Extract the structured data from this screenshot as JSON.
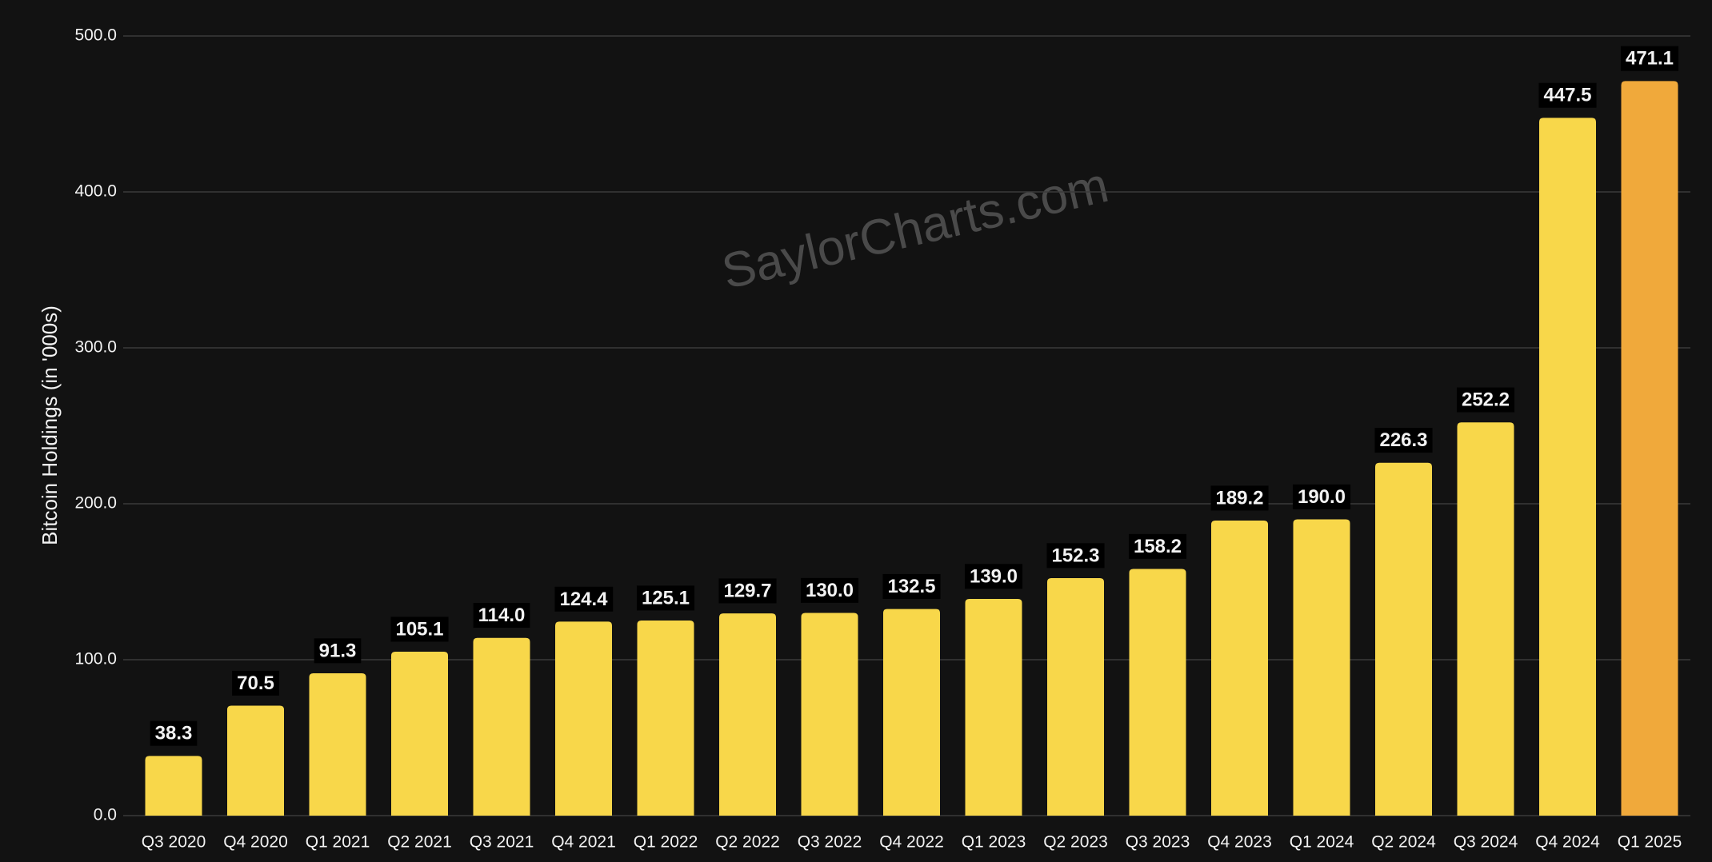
{
  "chart_data": {
    "type": "bar",
    "y_label": "Bitcoin Holdings (in '000s)",
    "watermark": "SaylorCharts.com",
    "categories": [
      "Q3 2020",
      "Q4 2020",
      "Q1 2021",
      "Q2 2021",
      "Q3 2021",
      "Q4 2021",
      "Q1 2022",
      "Q2 2022",
      "Q3 2022",
      "Q4 2022",
      "Q1 2023",
      "Q2 2023",
      "Q3 2023",
      "Q4 2023",
      "Q1 2024",
      "Q2 2024",
      "Q3 2024",
      "Q4 2024",
      "Q1 2025"
    ],
    "values": [
      38.3,
      70.5,
      91.3,
      105.1,
      114.0,
      124.4,
      125.1,
      129.7,
      130.0,
      132.5,
      139.0,
      152.3,
      158.2,
      189.2,
      190.0,
      226.3,
      252.2,
      447.5,
      471.1
    ],
    "value_labels": [
      "38.3",
      "70.5",
      "91.3",
      "105.1",
      "114.0",
      "124.4",
      "125.1",
      "129.7",
      "130.0",
      "132.5",
      "139.0",
      "152.3",
      "158.2",
      "189.2",
      "190.0",
      "226.3",
      "252.2",
      "447.5",
      "471.1"
    ],
    "colors": [
      "#f8d74a",
      "#f8d74a",
      "#f8d74a",
      "#f8d74a",
      "#f8d74a",
      "#f8d74a",
      "#f8d74a",
      "#f8d74a",
      "#f8d74a",
      "#f8d74a",
      "#f8d74a",
      "#f8d74a",
      "#f8d74a",
      "#f8d74a",
      "#f8d74a",
      "#f8d74a",
      "#f8d74a",
      "#f8d74a",
      "#f0a93b"
    ],
    "ylim": [
      0,
      500
    ],
    "yticks": [
      {
        "value": 0,
        "label": "0.0"
      },
      {
        "value": 100,
        "label": "100.0"
      },
      {
        "value": 200,
        "label": "200.0"
      },
      {
        "value": 300,
        "label": "300.0"
      },
      {
        "value": 400,
        "label": "400.0"
      },
      {
        "value": 500,
        "label": "500.0"
      }
    ],
    "grid": true
  }
}
